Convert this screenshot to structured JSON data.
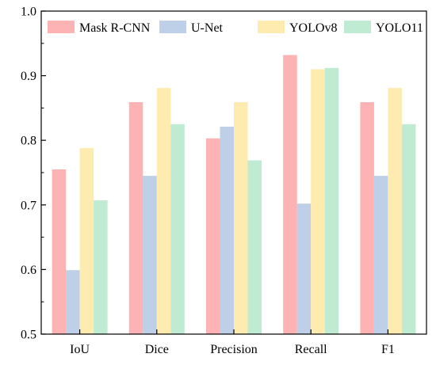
{
  "chart_data": {
    "type": "bar",
    "categories": [
      "IoU",
      "Dice",
      "Precision",
      "Recall",
      "F1"
    ],
    "series": [
      {
        "name": "Mask R-CNN",
        "color": "#FDB2B4",
        "values": [
          0.755,
          0.859,
          0.803,
          0.932,
          0.859
        ]
      },
      {
        "name": "U-Net",
        "color": "#BDD0E8",
        "values": [
          0.599,
          0.745,
          0.821,
          0.702,
          0.745
        ]
      },
      {
        "name": "YOLOv8",
        "color": "#FDEBB0",
        "values": [
          0.788,
          0.881,
          0.859,
          0.91,
          0.881
        ]
      },
      {
        "name": "YOLO11",
        "color": "#BEEBD2",
        "values": [
          0.707,
          0.825,
          0.769,
          0.912,
          0.825
        ]
      }
    ],
    "ylim": [
      0.5,
      1.0
    ],
    "yticks": [
      "0.5",
      "0.6",
      "0.7",
      "0.8",
      "0.9",
      "1.0"
    ],
    "title": "",
    "xlabel": "",
    "ylabel": "",
    "grid": false,
    "legend": "top"
  }
}
